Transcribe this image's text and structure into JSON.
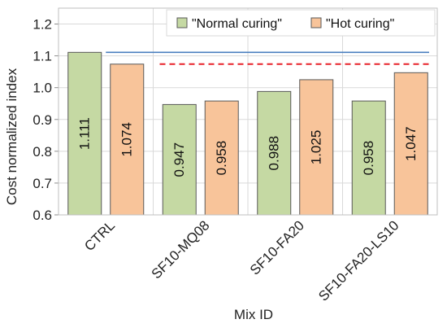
{
  "chart_data": {
    "type": "bar",
    "xlabel": "Mix ID",
    "ylabel": "Cost normalized index",
    "ylim": [
      0.6,
      1.25
    ],
    "yticks": [
      "0.6",
      "0.7",
      "0.8",
      "0.9",
      "1.0",
      "1.1",
      "1.2"
    ],
    "grid": true,
    "legend_position": "top-right",
    "categories": [
      "CTRL",
      "SF10-MQ08",
      "SF10-FA20",
      "SF10-FA20-LS10"
    ],
    "series": [
      {
        "name": "\"Normal curing\"",
        "color": "#c5d9a3",
        "values": [
          1.111,
          0.947,
          0.988,
          0.958
        ],
        "labels": [
          "1.111",
          "0.947",
          "0.988",
          "0.958"
        ]
      },
      {
        "name": "\"Hot curing\"",
        "color": "#f8c49a",
        "values": [
          1.074,
          0.958,
          1.025,
          1.047
        ],
        "labels": [
          "1.074",
          "0.958",
          "1.025",
          "1.047"
        ]
      }
    ],
    "reference_lines": [
      {
        "value": 1.111,
        "color": "#4a7fbf",
        "style": "solid"
      },
      {
        "value": 1.074,
        "color": "#e8222a",
        "style": "dashed"
      }
    ]
  }
}
